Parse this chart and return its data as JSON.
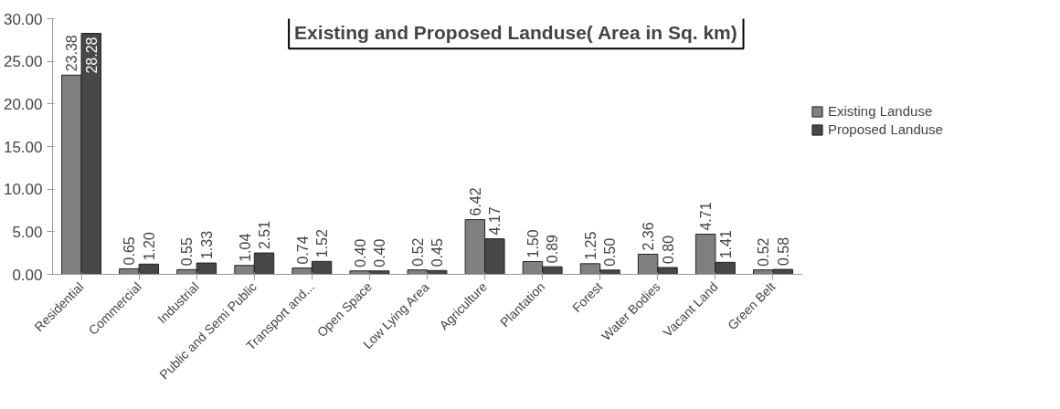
{
  "chart_data": {
    "type": "bar",
    "title": "Existing and Proposed Landuse( Area in Sq. km)",
    "categories": [
      "Residential",
      "Commercial",
      "Industrial",
      "Public and Semi Public",
      "Transport and...",
      "Open Space",
      "Low Lying Area",
      "Agriculture",
      "Plantation",
      "Forest",
      "Water Bodies",
      "Vacant Land",
      "Green Belt"
    ],
    "series": [
      {
        "name": "Existing Landuse",
        "color": "#808080",
        "values": [
          23.38,
          0.65,
          0.55,
          1.04,
          0.74,
          0.4,
          0.52,
          6.42,
          1.5,
          1.25,
          2.36,
          4.71,
          0.52
        ],
        "value_labels": [
          "23.38",
          "0.65",
          "0.55",
          "1.04",
          "0.74",
          "0.40",
          "0.52",
          "6.42",
          "1.50",
          "1.25",
          "2.36",
          "4.71",
          "0.52"
        ]
      },
      {
        "name": "Proposed Landuse",
        "color": "#474747",
        "values": [
          28.28,
          1.2,
          1.33,
          2.51,
          1.52,
          0.4,
          0.45,
          4.17,
          0.89,
          0.5,
          0.8,
          1.41,
          0.58
        ],
        "value_labels": [
          "28.28",
          "1.20",
          "1.33",
          "2.51",
          "1.52",
          "0.40",
          "0.45",
          "4.17",
          "0.89",
          "0.50",
          "0.80",
          "1.41",
          "0.58"
        ]
      }
    ],
    "ylim": [
      0,
      30
    ],
    "yticks": [
      {
        "value": 0,
        "label": "0.00"
      },
      {
        "value": 5,
        "label": "5.00"
      },
      {
        "value": 10,
        "label": "10.00"
      },
      {
        "value": 15,
        "label": "15.00"
      },
      {
        "value": 20,
        "label": "20.00"
      },
      {
        "value": 25,
        "label": "25.00"
      },
      {
        "value": 30,
        "label": "30.00"
      }
    ],
    "grid": false,
    "legend": "right"
  }
}
